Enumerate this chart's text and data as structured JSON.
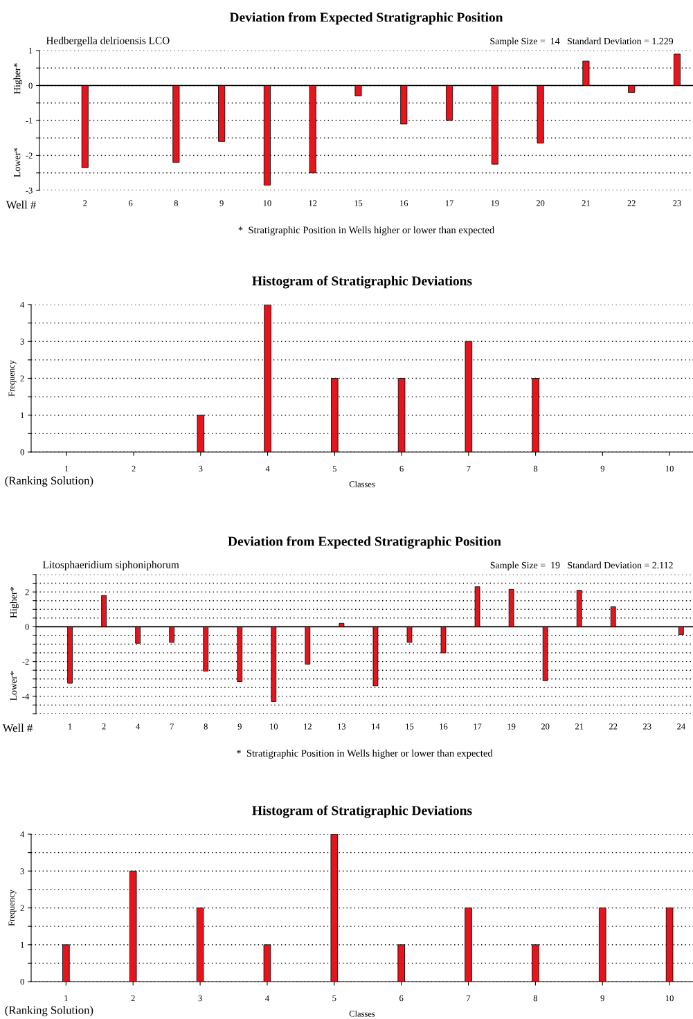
{
  "chart_data": [
    {
      "type": "bar",
      "title": "Deviation from Expected Stratigraphic Position",
      "subtitle": "Hedbergella delrioensis LCO",
      "xlabel": "Well #",
      "annotations": [
        "Sample Size =  14   Standard Deviation = 1.229",
        "*  Stratigraphic Position in Wells higher or lower than expected",
        "Higher*",
        "Lower*"
      ],
      "categories": [
        "2",
        "6",
        "8",
        "9",
        "10",
        "12",
        "15",
        "16",
        "17",
        "19",
        "20",
        "21",
        "22",
        "23"
      ],
      "series": [
        {
          "color": "#e8141c",
          "values": [
            -2.35,
            0,
            -2.2,
            -1.6,
            -2.85,
            -2.5,
            -0.3,
            -1.1,
            -1.0,
            -2.25,
            -1.65,
            0.7,
            -0.2,
            0.9
          ]
        }
      ],
      "ylim": [
        -3,
        1
      ],
      "yticks": [
        -3,
        {
          "value": -2.5,
          "label": null
        },
        -2,
        {
          "value": -1.5,
          "label": null
        },
        -1,
        {
          "value": -0.5,
          "label": null
        },
        0,
        {
          "value": 0.5,
          "label": null
        },
        1
      ],
      "grid": "y",
      "legend": false
    },
    {
      "type": "bar",
      "title": "Histogram of Stratigraphic Deviations",
      "xlabel": "Classes",
      "ylabel": "Frequency",
      "annotations": [
        "(Ranking Solution)"
      ],
      "categories": [
        "1",
        "2",
        "3",
        "4",
        "5",
        "6",
        "7",
        "8",
        "9",
        "10"
      ],
      "series": [
        {
          "color": "#e8141c",
          "values": [
            0,
            0,
            1,
            4,
            2,
            2,
            3,
            2,
            0,
            0
          ]
        }
      ],
      "ylim": [
        0,
        4
      ],
      "yticks": [
        0,
        {
          "value": 0.5,
          "label": null
        },
        1,
        {
          "value": 1.5,
          "label": null
        },
        2,
        {
          "value": 2.5,
          "label": null
        },
        3,
        {
          "value": 3.5,
          "label": null
        },
        4
      ],
      "grid": "y",
      "legend": false
    },
    {
      "type": "bar",
      "title": "Deviation from Expected Stratigraphic Position",
      "subtitle": "Litosphaeridium siphoniphorum",
      "xlabel": "Well #",
      "annotations": [
        "Sample Size =  19   Standard Deviation = 2.112",
        "*  Stratigraphic Position in Wells higher or lower than expected",
        "Higher*",
        "Lower*"
      ],
      "categories": [
        "1",
        "2",
        "4",
        "7",
        "8",
        "9",
        "10",
        "12",
        "13",
        "14",
        "15",
        "16",
        "17",
        "19",
        "20",
        "21",
        "22",
        "23",
        "24"
      ],
      "series": [
        {
          "color": "#e8141c",
          "values": [
            -3.25,
            1.8,
            -0.95,
            -0.9,
            -2.55,
            -3.15,
            -4.3,
            -2.15,
            0.2,
            -3.4,
            -0.9,
            -1.5,
            2.3,
            2.15,
            -3.1,
            2.1,
            1.15,
            0,
            -0.45
          ]
        }
      ],
      "ylim": [
        -5,
        3
      ],
      "yticks": [
        {
          "value": -5,
          "label": null
        },
        {
          "value": -4.5,
          "label": null
        },
        -4,
        {
          "value": -3.5,
          "label": null
        },
        {
          "value": -3,
          "label": null
        },
        {
          "value": -2.5,
          "label": null
        },
        -2,
        {
          "value": -1.5,
          "label": null
        },
        {
          "value": -1,
          "label": null
        },
        {
          "value": -0.5,
          "label": null
        },
        0,
        {
          "value": 0.5,
          "label": null
        },
        {
          "value": 1,
          "label": null
        },
        {
          "value": 1.5,
          "label": null
        },
        2,
        {
          "value": 2.5,
          "label": null
        },
        {
          "value": 3,
          "label": null
        }
      ],
      "grid": "y",
      "legend": false
    },
    {
      "type": "bar",
      "title": "Histogram of Stratigraphic Deviations",
      "xlabel": "Classes",
      "ylabel": "Frequency",
      "annotations": [
        "(Ranking Solution)"
      ],
      "categories": [
        "1",
        "2",
        "3",
        "4",
        "5",
        "6",
        "7",
        "8",
        "9",
        "10"
      ],
      "series": [
        {
          "color": "#e8141c",
          "values": [
            1,
            3,
            2,
            1,
            4,
            1,
            2,
            1,
            2,
            2
          ]
        }
      ],
      "ylim": [
        0,
        4
      ],
      "yticks": [
        0,
        {
          "value": 0.5,
          "label": null
        },
        1,
        {
          "value": 1.5,
          "label": null
        },
        2,
        {
          "value": 2.5,
          "label": null
        },
        3,
        {
          "value": 3.5,
          "label": null
        },
        4
      ],
      "grid": "y",
      "legend": false
    }
  ]
}
